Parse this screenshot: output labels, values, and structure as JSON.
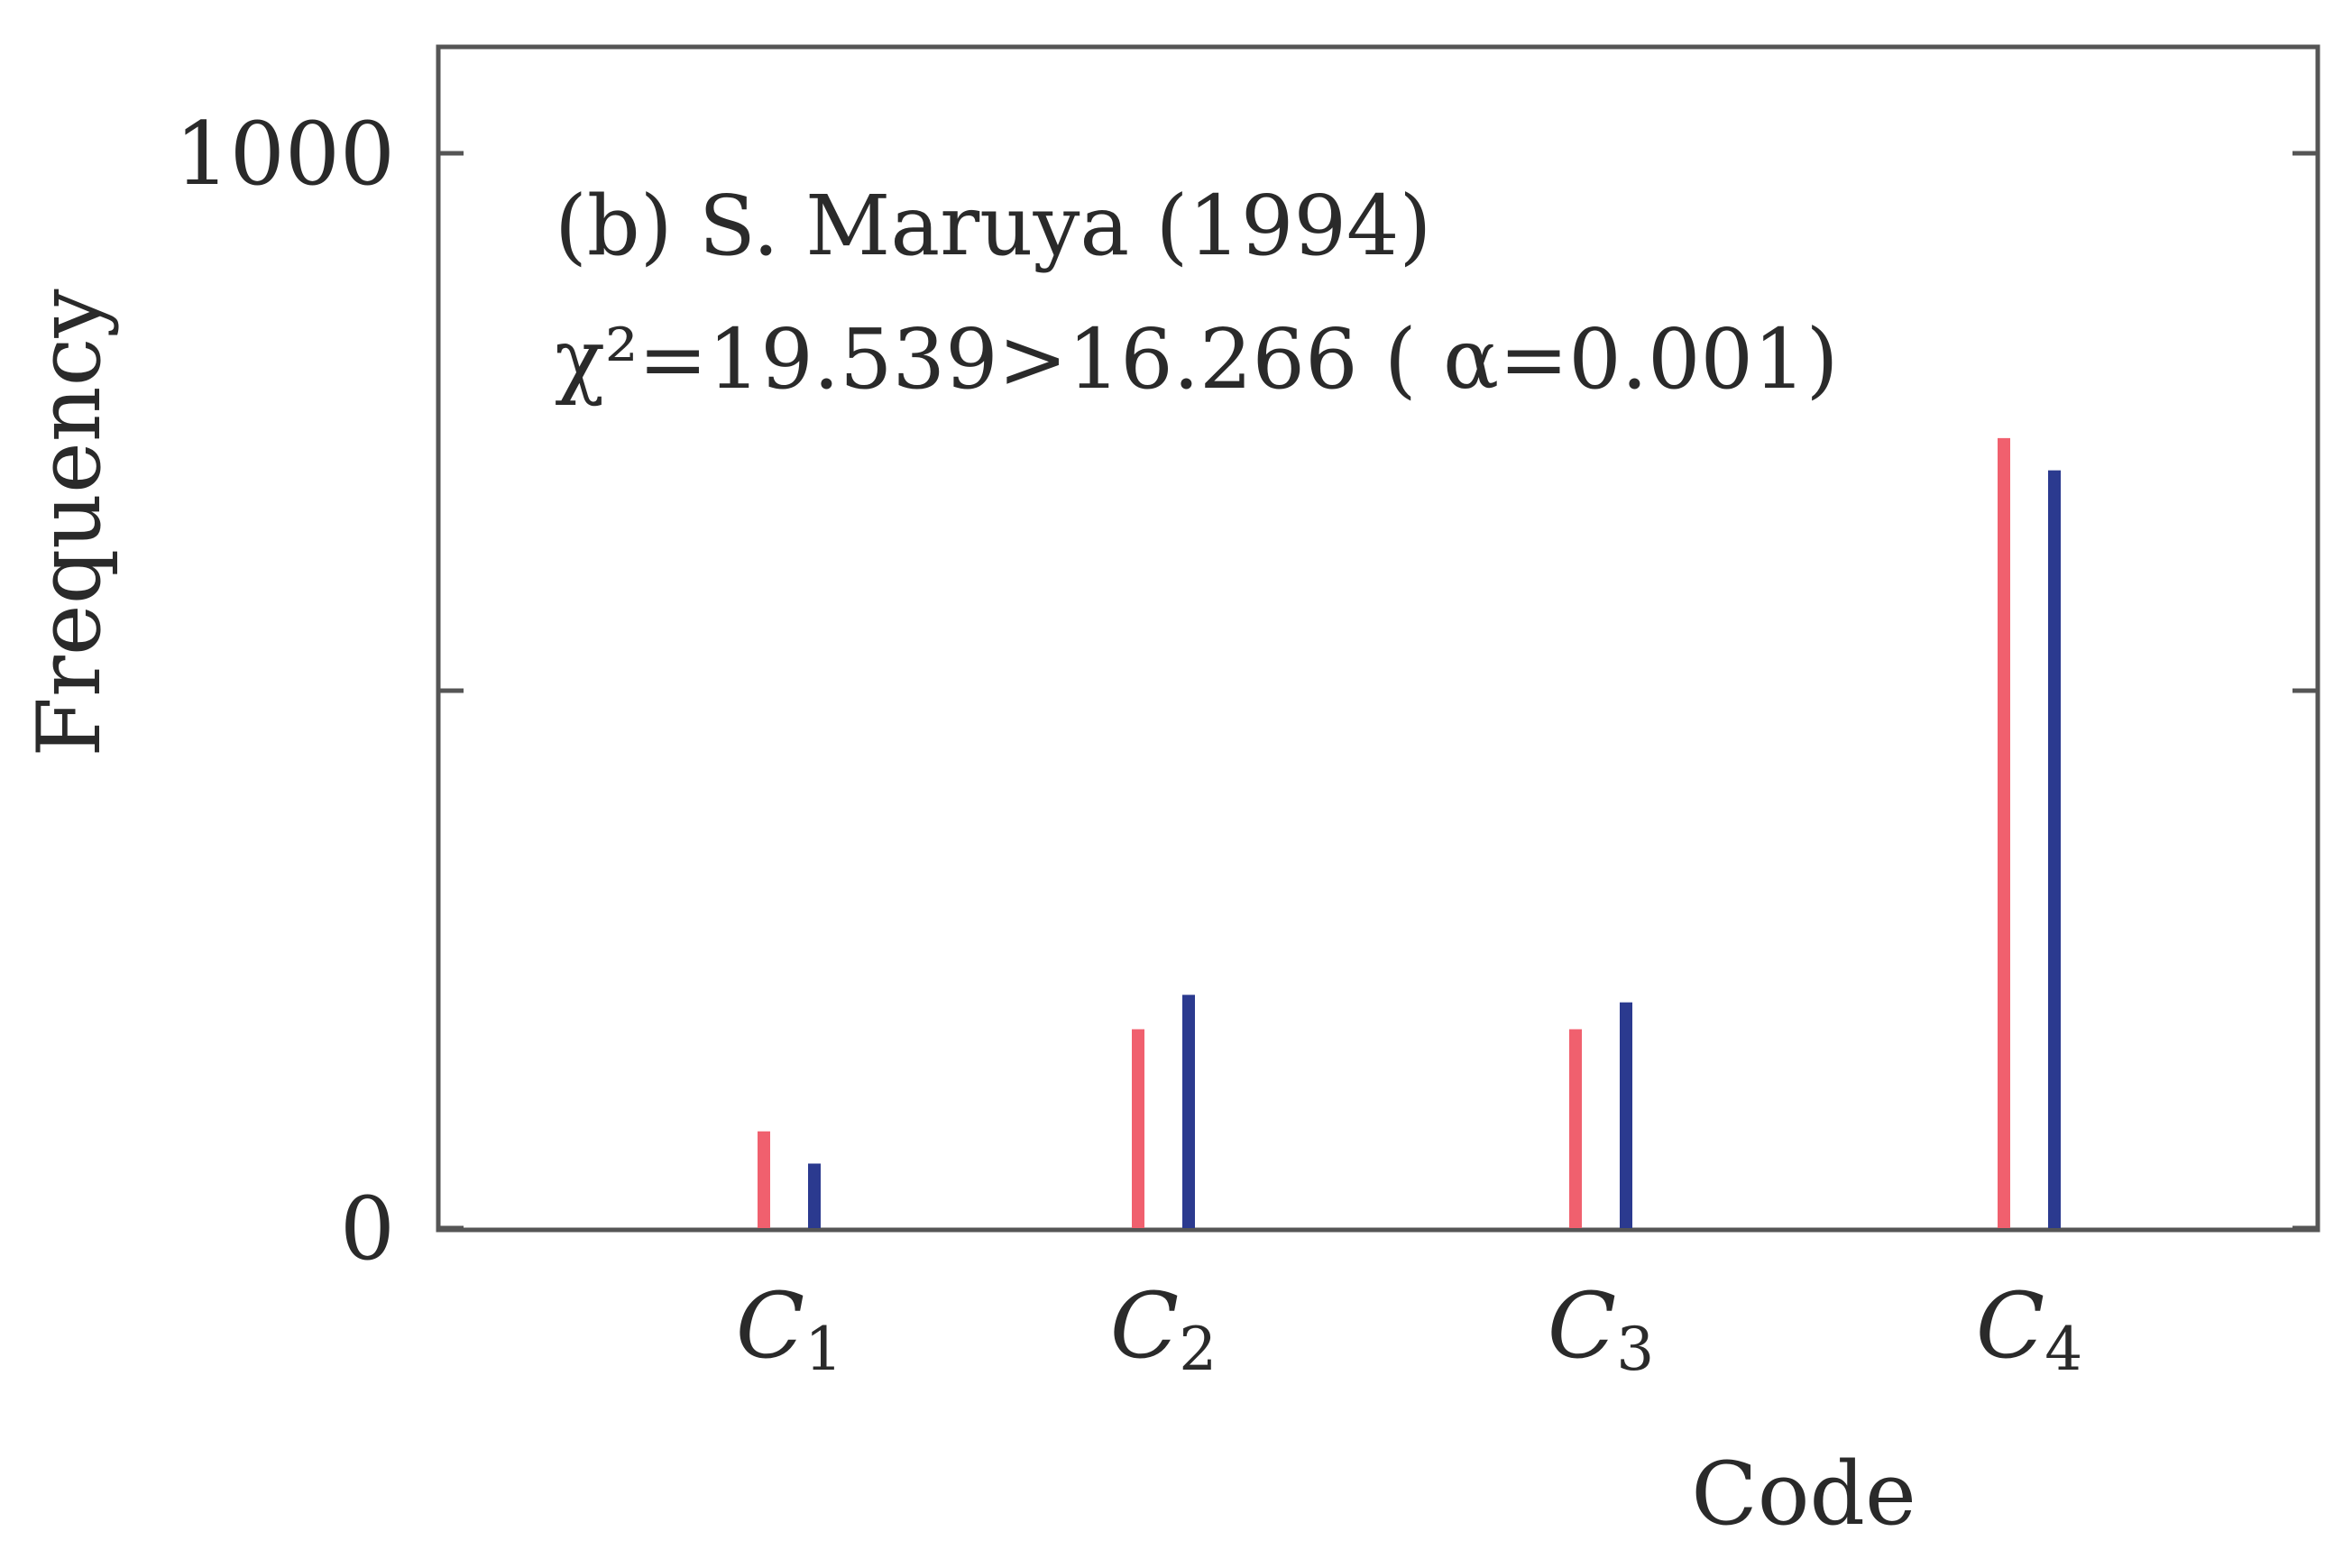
{
  "chart_data": {
    "type": "bar",
    "title": "",
    "annotation_lines": [
      "(b) S. Maruya (1994)",
      "χ²=19.539>16.266 ( α=0.001)"
    ],
    "xlabel": "Code",
    "ylabel": "Frequency",
    "categories": [
      {
        "base": "C",
        "sub": "1"
      },
      {
        "base": "C",
        "sub": "2"
      },
      {
        "base": "C",
        "sub": "3"
      },
      {
        "base": "C",
        "sub": "4"
      }
    ],
    "series": [
      {
        "values": [
          90,
          185,
          185,
          735
        ],
        "color": "#f0606e"
      },
      {
        "values": [
          60,
          217,
          210,
          705
        ],
        "color": "#2b3a8f"
      }
    ],
    "y_tick_values": [
      0,
      500,
      1000
    ],
    "y_tick_labels": [
      "0",
      "",
      "1000"
    ],
    "ylim": [
      0,
      1100
    ],
    "grid": false
  }
}
